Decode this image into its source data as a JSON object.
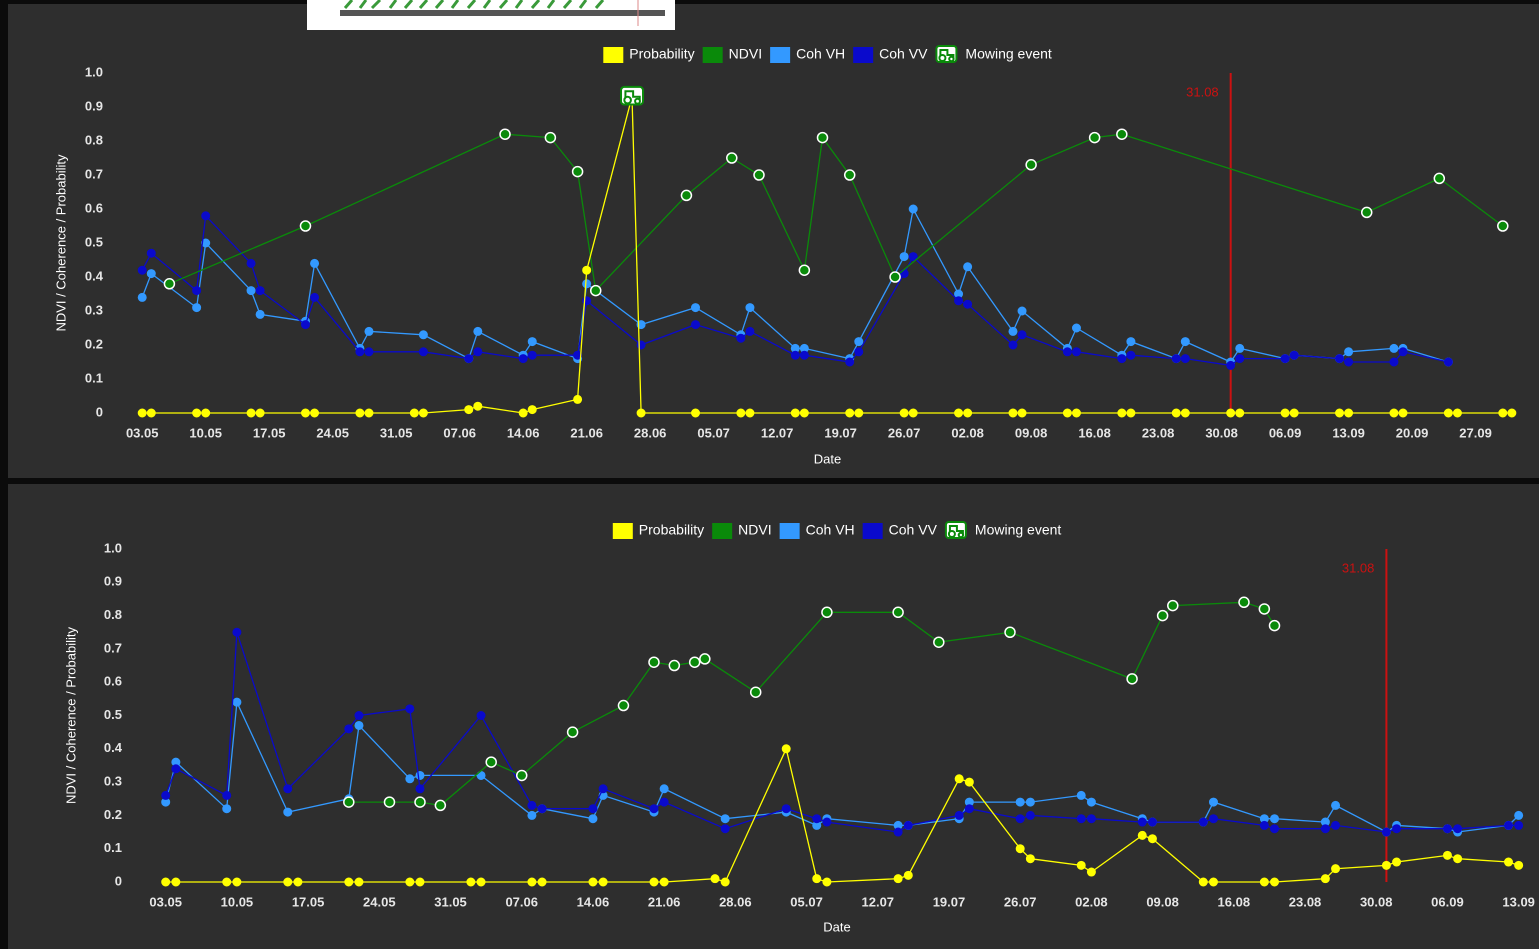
{
  "chart_data": [
    {
      "type": "line",
      "y_label": "NDVI / Coherence / Probability",
      "x_label": "Date",
      "xlim": [
        "30.04",
        "03.10"
      ],
      "xticks": [
        "03.05",
        "10.05",
        "17.05",
        "24.05",
        "31.05",
        "07.06",
        "14.06",
        "21.06",
        "28.06",
        "05.07",
        "12.07",
        "19.07",
        "26.07",
        "02.08",
        "09.08",
        "16.08",
        "23.08",
        "30.08",
        "06.09",
        "13.09",
        "20.09",
        "27.09"
      ],
      "ylim": [
        0,
        1
      ],
      "yticks": [
        0,
        0.1,
        0.2,
        0.3,
        0.4,
        0.5,
        0.6,
        0.7,
        0.8,
        0.9,
        {
          "value": 1,
          "label": "1.0"
        }
      ],
      "grid": false,
      "legend": "top",
      "vline": {
        "x": "31.08",
        "color": "#cc1111"
      },
      "series": [
        {
          "name": "Probability",
          "color": "#ffff00",
          "marker": "filled",
          "x": [
            "03.05",
            "04.05",
            "09.05",
            "10.05",
            "15.05",
            "16.05",
            "21.05",
            "22.05",
            "27.05",
            "28.05",
            "02.06",
            "03.06",
            "08.06",
            "09.06",
            "14.06",
            "15.06",
            "20.06",
            "21.06",
            "26.06",
            "27.06",
            "03.07",
            "08.07",
            "09.07",
            "14.07",
            "15.07",
            "20.07",
            "21.07",
            "26.07",
            "27.07",
            "01.08",
            "02.08",
            "07.08",
            "08.08",
            "13.08",
            "14.08",
            "19.08",
            "20.08",
            "25.08",
            "26.08",
            "31.08",
            "01.09",
            "06.09",
            "07.09",
            "12.09",
            "13.09",
            "18.09",
            "19.09",
            "24.09",
            "25.09",
            "30.09",
            "01.10"
          ],
          "values": [
            0,
            0,
            0,
            0,
            0,
            0,
            0,
            0,
            0,
            0,
            0,
            0,
            0.01,
            0.02,
            0,
            0.01,
            0.04,
            0.42,
            0.93,
            0,
            0,
            0,
            0,
            0,
            0,
            0,
            0,
            0,
            0,
            0,
            0,
            0,
            0,
            0,
            0,
            0,
            0,
            0,
            0,
            0,
            0,
            0,
            0,
            0,
            0,
            0,
            0,
            0,
            0,
            0,
            0
          ]
        },
        {
          "name": "NDVI",
          "color": "#0a8a0a",
          "marker": "hollow",
          "x": [
            "06.05",
            "21.05",
            "12.06",
            "17.06",
            "20.06",
            "22.06",
            "02.07",
            "07.07",
            "10.07",
            "15.07",
            "17.07",
            "20.07",
            "25.07",
            "09.08",
            "16.08",
            "19.08",
            "15.09",
            "23.09",
            "30.09"
          ],
          "values": [
            0.38,
            0.55,
            0.82,
            0.81,
            0.71,
            0.36,
            0.64,
            0.75,
            0.7,
            0.42,
            0.81,
            0.7,
            0.4,
            0.73,
            0.81,
            0.82,
            0.59,
            0.69,
            0.55
          ]
        },
        {
          "name": "Coh VH",
          "color": "#3399ff",
          "marker": "filled",
          "x": [
            "03.05",
            "04.05",
            "09.05",
            "10.05",
            "15.05",
            "16.05",
            "21.05",
            "22.05",
            "27.05",
            "28.05",
            "03.06",
            "08.06",
            "09.06",
            "14.06",
            "15.06",
            "20.06",
            "21.06",
            "27.06",
            "03.07",
            "08.07",
            "09.07",
            "14.07",
            "15.07",
            "20.07",
            "21.07",
            "26.07",
            "27.07",
            "01.08",
            "02.08",
            "07.08",
            "08.08",
            "13.08",
            "14.08",
            "19.08",
            "20.08",
            "25.08",
            "26.08",
            "31.08",
            "01.09",
            "06.09",
            "07.09",
            "12.09",
            "13.09",
            "18.09",
            "19.09",
            "24.09"
          ],
          "values": [
            0.34,
            0.41,
            0.31,
            0.5,
            0.36,
            0.29,
            0.27,
            0.44,
            0.19,
            0.24,
            0.23,
            0.16,
            0.24,
            0.17,
            0.21,
            0.16,
            0.38,
            0.26,
            0.31,
            0.23,
            0.31,
            0.19,
            0.19,
            0.16,
            0.21,
            0.46,
            0.6,
            0.35,
            0.43,
            0.24,
            0.3,
            0.19,
            0.25,
            0.17,
            0.21,
            0.16,
            0.21,
            0.15,
            0.19,
            0.16,
            0.17,
            0.16,
            0.18,
            0.19,
            0.19,
            0.15
          ]
        },
        {
          "name": "Coh VV",
          "color": "#0a0acc",
          "marker": "filled",
          "x": [
            "03.05",
            "04.05",
            "09.05",
            "10.05",
            "15.05",
            "16.05",
            "21.05",
            "22.05",
            "27.05",
            "28.05",
            "03.06",
            "08.06",
            "09.06",
            "14.06",
            "15.06",
            "20.06",
            "21.06",
            "27.06",
            "03.07",
            "08.07",
            "09.07",
            "14.07",
            "15.07",
            "20.07",
            "21.07",
            "26.07",
            "27.07",
            "01.08",
            "02.08",
            "07.08",
            "08.08",
            "13.08",
            "14.08",
            "19.08",
            "20.08",
            "25.08",
            "26.08",
            "31.08",
            "01.09",
            "06.09",
            "07.09",
            "12.09",
            "13.09",
            "18.09",
            "19.09",
            "24.09"
          ],
          "values": [
            0.42,
            0.47,
            0.36,
            0.58,
            0.44,
            0.36,
            0.26,
            0.34,
            0.18,
            0.18,
            0.18,
            0.16,
            0.18,
            0.16,
            0.17,
            0.17,
            0.33,
            0.2,
            0.26,
            0.22,
            0.24,
            0.17,
            0.17,
            0.15,
            0.18,
            0.41,
            0.46,
            0.33,
            0.32,
            0.2,
            0.23,
            0.18,
            0.18,
            0.16,
            0.17,
            0.16,
            0.16,
            0.14,
            0.16,
            0.16,
            0.17,
            0.16,
            0.15,
            0.15,
            0.18,
            0.15
          ]
        }
      ],
      "mowing_event": {
        "name": "Mowing event",
        "color": "#0a8a0a",
        "x": [
          "26.06"
        ],
        "values": [
          0.93
        ]
      }
    },
    {
      "type": "line",
      "y_label": "NDVI / Coherence / Probability",
      "x_label": "Date",
      "xlim": [
        "29.04",
        "15.09"
      ],
      "xticks": [
        "03.05",
        "10.05",
        "17.05",
        "24.05",
        "31.05",
        "07.06",
        "14.06",
        "21.06",
        "28.06",
        "05.07",
        "12.07",
        "19.07",
        "26.07",
        "02.08",
        "09.08",
        "16.08",
        "23.08",
        "30.08",
        "06.09",
        "13.09"
      ],
      "ylim": [
        0,
        1
      ],
      "yticks": [
        0,
        0.1,
        0.2,
        0.3,
        0.4,
        0.5,
        0.6,
        0.7,
        0.8,
        0.9,
        {
          "value": 1,
          "label": "1.0"
        }
      ],
      "grid": false,
      "legend": "top",
      "vline": {
        "x": "31.08",
        "color": "#cc1111"
      },
      "series": [
        {
          "name": "Probability",
          "color": "#ffff00",
          "marker": "filled",
          "x": [
            "03.05",
            "04.05",
            "09.05",
            "10.05",
            "15.05",
            "16.05",
            "21.05",
            "22.05",
            "27.05",
            "28.05",
            "02.06",
            "03.06",
            "08.06",
            "09.06",
            "14.06",
            "15.06",
            "20.06",
            "21.06",
            "26.06",
            "27.06",
            "03.07",
            "06.07",
            "07.07",
            "14.07",
            "15.07",
            "20.07",
            "21.07",
            "26.07",
            "27.07",
            "01.08",
            "02.08",
            "07.08",
            "08.08",
            "13.08",
            "14.08",
            "19.08",
            "20.08",
            "25.08",
            "26.08",
            "31.08",
            "01.09",
            "06.09",
            "07.09",
            "12.09",
            "13.09"
          ],
          "values": [
            0,
            0,
            0,
            0,
            0,
            0,
            0,
            0,
            0,
            0,
            0,
            0,
            0,
            0,
            0,
            0,
            0,
            0,
            0.01,
            0,
            0.4,
            0.01,
            0,
            0.01,
            0.02,
            0.31,
            0.3,
            0.1,
            0.07,
            0.05,
            0.03,
            0.14,
            0.13,
            0,
            0,
            0,
            0,
            0.01,
            0.04,
            0.05,
            0.06,
            0.08,
            0.07,
            0.06,
            0.05
          ]
        },
        {
          "name": "NDVI",
          "color": "#0a8a0a",
          "marker": "hollow",
          "x": [
            "21.05",
            "25.05",
            "28.05",
            "30.05",
            "04.06",
            "07.06",
            "12.06",
            "17.06",
            "20.06",
            "22.06",
            "24.06",
            "25.06",
            "30.06",
            "07.07",
            "14.07",
            "18.07",
            "25.07",
            "06.08",
            "09.08",
            "10.08",
            "17.08",
            "19.08",
            "20.08"
          ],
          "values": [
            0.24,
            0.24,
            0.24,
            0.23,
            0.36,
            0.32,
            0.45,
            0.53,
            0.66,
            0.65,
            0.66,
            0.67,
            0.57,
            0.81,
            0.81,
            0.72,
            0.75,
            0.61,
            0.8,
            0.83,
            0.84,
            0.82,
            0.77
          ]
        },
        {
          "name": "Coh VH",
          "color": "#3399ff",
          "marker": "filled",
          "x": [
            "03.05",
            "04.05",
            "09.05",
            "10.05",
            "15.05",
            "21.05",
            "22.05",
            "27.05",
            "28.05",
            "03.06",
            "08.06",
            "09.06",
            "14.06",
            "15.06",
            "20.06",
            "21.06",
            "27.06",
            "03.07",
            "06.07",
            "07.07",
            "14.07",
            "15.07",
            "20.07",
            "21.07",
            "26.07",
            "27.07",
            "01.08",
            "02.08",
            "07.08",
            "08.08",
            "13.08",
            "14.08",
            "19.08",
            "20.08",
            "25.08",
            "26.08",
            "31.08",
            "01.09",
            "06.09",
            "07.09",
            "12.09",
            "13.09"
          ],
          "values": [
            0.24,
            0.36,
            0.22,
            0.54,
            0.21,
            0.25,
            0.47,
            0.31,
            0.32,
            0.32,
            0.2,
            0.22,
            0.19,
            0.26,
            0.21,
            0.28,
            0.19,
            0.21,
            0.17,
            0.19,
            0.17,
            0.17,
            0.19,
            0.24,
            0.24,
            0.24,
            0.26,
            0.24,
            0.19,
            0.18,
            0.18,
            0.24,
            0.19,
            0.19,
            0.18,
            0.23,
            0.15,
            0.17,
            0.16,
            0.15,
            0.17,
            0.2
          ]
        },
        {
          "name": "Coh VV",
          "color": "#0a0acc",
          "marker": "filled",
          "x": [
            "03.05",
            "04.05",
            "09.05",
            "10.05",
            "15.05",
            "21.05",
            "22.05",
            "27.05",
            "28.05",
            "03.06",
            "08.06",
            "09.06",
            "14.06",
            "15.06",
            "20.06",
            "21.06",
            "27.06",
            "03.07",
            "06.07",
            "07.07",
            "14.07",
            "15.07",
            "20.07",
            "21.07",
            "26.07",
            "27.07",
            "01.08",
            "02.08",
            "07.08",
            "08.08",
            "13.08",
            "14.08",
            "19.08",
            "20.08",
            "25.08",
            "26.08",
            "31.08",
            "01.09",
            "06.09",
            "07.09",
            "12.09",
            "13.09"
          ],
          "values": [
            0.26,
            0.34,
            0.26,
            0.75,
            0.28,
            0.46,
            0.5,
            0.52,
            0.28,
            0.5,
            0.23,
            0.22,
            0.22,
            0.28,
            0.22,
            0.24,
            0.16,
            0.22,
            0.19,
            0.18,
            0.15,
            0.17,
            0.2,
            0.22,
            0.19,
            0.2,
            0.19,
            0.19,
            0.18,
            0.18,
            0.18,
            0.19,
            0.17,
            0.16,
            0.16,
            0.17,
            0.15,
            0.16,
            0.16,
            0.16,
            0.17,
            0.17
          ]
        }
      ],
      "mowing_event": {
        "name": "Mowing event",
        "color": "#0a8a0a",
        "x": [],
        "values": []
      }
    }
  ]
}
